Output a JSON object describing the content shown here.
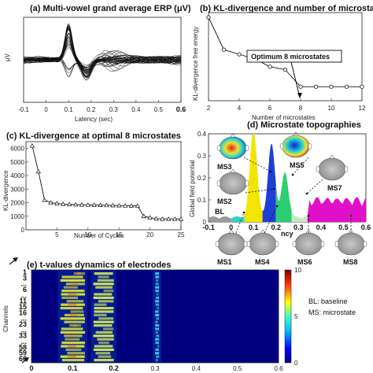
{
  "panels": {
    "a": {
      "title": "(a) Multi-vowel grand average ERP (μV)",
      "ylabel": "μV",
      "xlabel": "Latency (sec)",
      "xticks": [
        "-0.1",
        "0",
        "0.1",
        "0.2",
        "0.3",
        "0.4",
        "0.5",
        "0.6"
      ]
    },
    "b": {
      "title": "(b) KL-divergence and number of microstates",
      "ylabel": "KL-divergence free energy",
      "xlabel": "Number of microstates",
      "xticks": [
        "2",
        "4",
        "6",
        "8",
        "10",
        "12"
      ],
      "annotation": "Optimum 8 microstates"
    },
    "c": {
      "title": "(c) KL-divergence at optimal 8 microstates",
      "ylabel": "KL-divergence",
      "xlabel": "Number of Cycles",
      "xticks": [
        "5",
        "10",
        "15",
        "20",
        "25"
      ],
      "yticks": [
        "0",
        "1000",
        "2000",
        "3000",
        "4000",
        "5000",
        "6000"
      ]
    },
    "d": {
      "title": "(d) Microstate topographies",
      "ylabel": "Global field potential",
      "yticks": [
        "0",
        "0.1",
        "0.2",
        "0.3",
        "0.4"
      ],
      "xticks": [
        "-0.1",
        "0",
        "0.1",
        "0.2",
        "0.3",
        "0.4",
        "0.5",
        "0.6"
      ],
      "baseline_label": "BL",
      "partial_label": "ncy",
      "microstates": [
        "MS1",
        "MS2",
        "MS3",
        "MS4",
        "MS5",
        "MS6",
        "MS7",
        "MS8"
      ]
    },
    "e": {
      "title": "(e) t-values dynamics of electrodes",
      "ylabel": "Channels",
      "channel_labels": [
        "1",
        "3",
        "...",
        "6",
        "...",
        "11",
        "15",
        "16",
        "...",
        "23",
        "...",
        "33",
        "...",
        "58",
        "59",
        "60"
      ],
      "xticks": [
        "0",
        "0.1",
        "0.2",
        "0.3",
        "0.4",
        "0.5",
        "0.6"
      ],
      "colorbar_ticks": [
        "10",
        "5",
        "0"
      ],
      "legend": [
        "BL: baseline",
        "MS: microstate"
      ]
    }
  },
  "chart_data": [
    {
      "type": "line",
      "panel": "a",
      "title": "(a) Multi-vowel grand average ERP (μV)",
      "xlabel": "Latency (sec)",
      "ylabel": "μV",
      "xlim": [
        -0.1,
        0.6
      ],
      "description_of_series": "many overlaid electrode waveforms",
      "peaks": [
        {
          "latency": 0.1,
          "amplitude_sign": "positive"
        },
        {
          "latency": 0.18,
          "amplitude_sign": "negative"
        }
      ]
    },
    {
      "type": "line",
      "panel": "b",
      "title": "(b) KL-divergence and number of microstates",
      "xlabel": "Number of microstates",
      "ylabel": "KL-divergence free energy",
      "xlim": [
        2,
        12
      ],
      "x": [
        2,
        3,
        4,
        5,
        6,
        7,
        8,
        9,
        10,
        11,
        12
      ],
      "y": [
        1.0,
        0.58,
        0.52,
        0.46,
        0.36,
        0.32,
        0.1,
        0.1,
        0.1,
        0.1,
        0.1
      ],
      "annotation": {
        "text": "Optimum 8 microstates",
        "x": 8
      }
    },
    {
      "type": "line",
      "panel": "c",
      "title": "(c) KL-divergence at optimal 8 microstates",
      "xlabel": "Number of Cycles",
      "ylabel": "KL-divergence",
      "xlim": [
        0,
        25
      ],
      "ylim": [
        0,
        6500
      ],
      "x": [
        1,
        2,
        3,
        4,
        5,
        6,
        7,
        8,
        9,
        10,
        11,
        12,
        13,
        14,
        15,
        16,
        17,
        18,
        19,
        20,
        21,
        22,
        23,
        24,
        25
      ],
      "y": [
        6200,
        4300,
        2200,
        2000,
        1950,
        1900,
        1880,
        1860,
        1850,
        1840,
        1830,
        1820,
        1810,
        1800,
        1790,
        1780,
        1770,
        1760,
        1000,
        900,
        820,
        800,
        800,
        800,
        800
      ]
    },
    {
      "type": "area",
      "panel": "d",
      "title": "(d) Microstate topographies",
      "ylabel": "Global field potential",
      "xlim": [
        -0.1,
        0.6
      ],
      "ylim": [
        0,
        0.4
      ],
      "segments": [
        {
          "label": "BL",
          "x_start": -0.1,
          "x_end": 0.0,
          "color": "#9a9a9a"
        },
        {
          "label": "MS1",
          "x_start": 0.0,
          "x_end": 0.06,
          "color": "#2bd3c8"
        },
        {
          "label": "MS3",
          "x_start": 0.06,
          "x_end": 0.14,
          "color": "#f2e600"
        },
        {
          "label": "MS4",
          "x_start": 0.14,
          "x_end": 0.2,
          "color": "#1e3fd6"
        },
        {
          "label": "MS5",
          "x_start": 0.2,
          "x_end": 0.27,
          "color": "#2ccf70"
        },
        {
          "label": "MS6",
          "x_start": 0.27,
          "x_end": 0.34,
          "color": "#c7e8c5"
        },
        {
          "label": "MS7",
          "x_start": 0.34,
          "x_end": 0.6,
          "color": "#e010c8"
        }
      ],
      "peaks": [
        {
          "latency": 0.1,
          "gfp": 0.4
        },
        {
          "latency": 0.18,
          "gfp": 0.33
        },
        {
          "latency": 0.24,
          "gfp": 0.2
        }
      ]
    },
    {
      "type": "heatmap",
      "panel": "e",
      "title": "(e) t-values dynamics of electrodes",
      "ylabel": "Channels",
      "xlim": [
        0,
        0.6
      ],
      "clim": [
        0,
        10
      ],
      "hot_bands": [
        {
          "x_start": 0.07,
          "x_end": 0.13,
          "level": 9
        },
        {
          "x_start": 0.15,
          "x_end": 0.2,
          "level": 6
        },
        {
          "x_start": 0.3,
          "x_end": 0.31,
          "level": 3
        }
      ]
    }
  ]
}
